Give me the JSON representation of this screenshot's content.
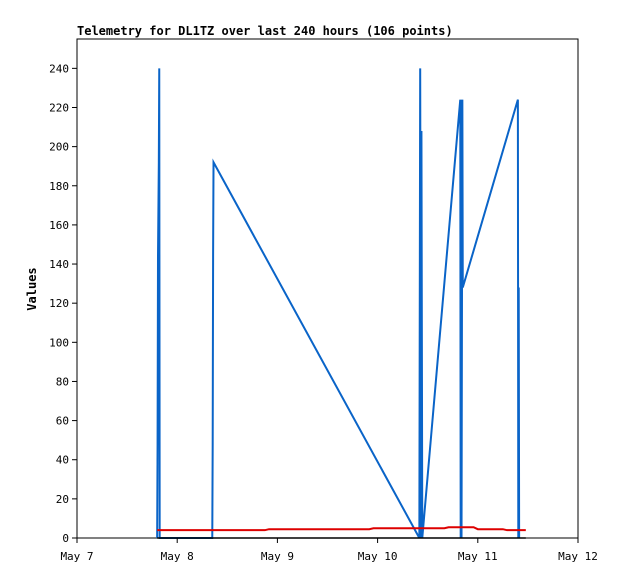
{
  "chart_data": {
    "type": "line",
    "title": "Telemetry for DL1TZ over last 240 hours (106 points)",
    "xlabel": "",
    "ylabel": "Values",
    "x_range_hours": [
      0,
      120
    ],
    "x_unit": "hours since May 7 00:00",
    "ylim": [
      0,
      255
    ],
    "grid": false,
    "legend": "none",
    "x_ticks": [
      {
        "label": "May 7",
        "hour": 0
      },
      {
        "label": "May 8",
        "hour": 24
      },
      {
        "label": "May 9",
        "hour": 48
      },
      {
        "label": "May 10",
        "hour": 72
      },
      {
        "label": "May 11",
        "hour": 96
      },
      {
        "label": "May 12",
        "hour": 120
      }
    ],
    "y_ticks": [
      0,
      20,
      40,
      60,
      80,
      100,
      120,
      140,
      160,
      180,
      200,
      220,
      240
    ],
    "series": [
      {
        "color": "#0a64c8",
        "points": [
          [
            19.2,
            0
          ],
          [
            19.3,
            48
          ],
          [
            19.4,
            144
          ],
          [
            19.6,
            192
          ],
          [
            19.7,
            240
          ],
          [
            19.8,
            0
          ],
          [
            32.4,
            0
          ],
          [
            32.5,
            48
          ],
          [
            32.6,
            144
          ],
          [
            32.7,
            192
          ],
          [
            82.0,
            0
          ],
          [
            82.2,
            240
          ],
          [
            82.4,
            0
          ],
          [
            82.5,
            208
          ],
          [
            82.7,
            0
          ],
          [
            91.8,
            224
          ],
          [
            91.9,
            0
          ],
          [
            92.0,
            224
          ],
          [
            92.1,
            0
          ],
          [
            92.3,
            224
          ],
          [
            92.4,
            128
          ],
          [
            105.6,
            224
          ],
          [
            105.7,
            0
          ],
          [
            105.8,
            128
          ],
          [
            105.9,
            0
          ]
        ]
      },
      {
        "color": "#dd0000",
        "points": [
          [
            19.2,
            4
          ],
          [
            45.0,
            4
          ],
          [
            46.0,
            4.5
          ],
          [
            70.0,
            4.5
          ],
          [
            71.0,
            5
          ],
          [
            88.0,
            5
          ],
          [
            89.0,
            5.5
          ],
          [
            95.0,
            5.5
          ],
          [
            96.0,
            4.5
          ],
          [
            102.0,
            4.5
          ],
          [
            103.0,
            4
          ],
          [
            107.5,
            4
          ]
        ]
      },
      {
        "color": "#000000",
        "points": [
          [
            19.2,
            0
          ],
          [
            107.5,
            0
          ]
        ]
      }
    ]
  }
}
